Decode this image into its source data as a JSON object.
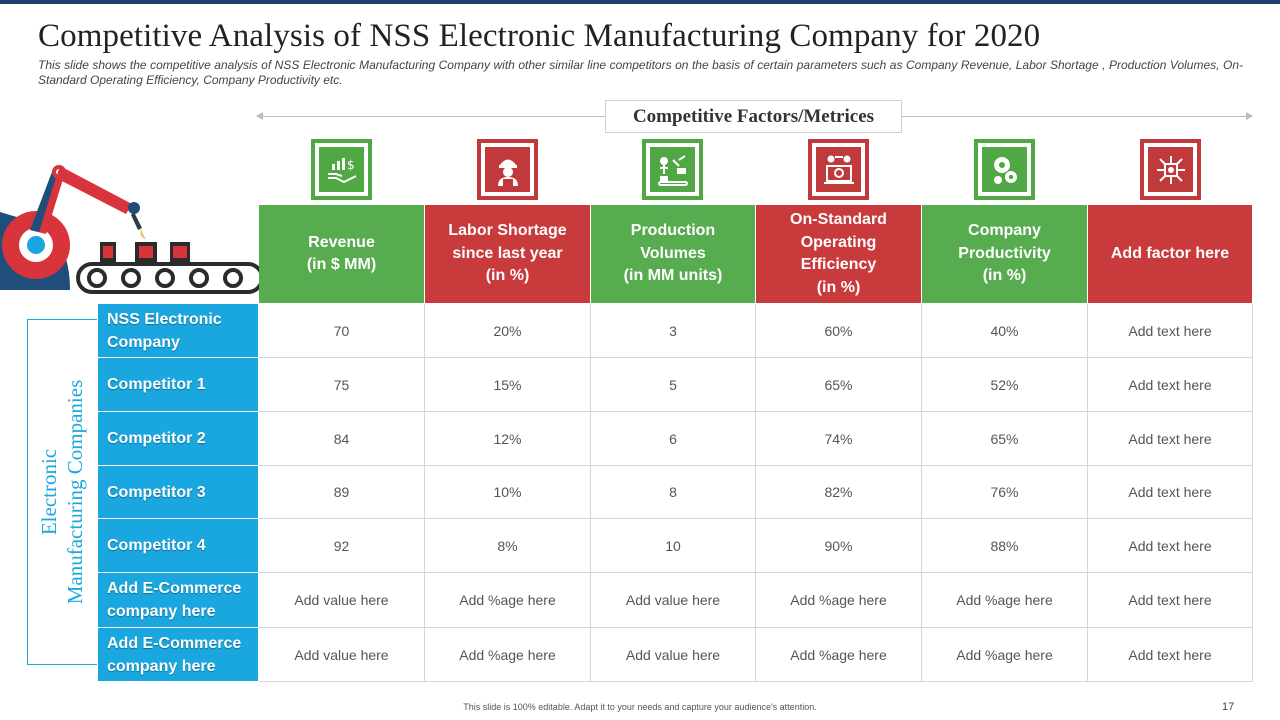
{
  "slide": {
    "title": "Competitive Analysis of NSS Electronic Manufacturing Company for 2020",
    "subtitle": "This slide shows the competitive analysis of NSS Electronic Manufacturing  Company with other similar line competitors on the basis of certain parameters such as Company Revenue,  Labor Shortage , Production Volumes, On-Standard Operating Efficiency, Company Productivity etc.",
    "factors_label": "Competitive Factors/Metrices",
    "side_label_line1": "Electronic",
    "side_label_line2": "Manufacturing Companies",
    "footer": "This slide is 100% editable. Adapt it to your needs and capture your audience's attention.",
    "page_number": "17"
  },
  "colors": {
    "green": "#57ac4f",
    "red": "#c93a3d",
    "blue": "#1aa7df",
    "navy": "#1f3f6e"
  },
  "columns": [
    {
      "label": "Revenue\n(in $ MM)",
      "color": "green",
      "icon": "money-hand-icon"
    },
    {
      "label": "Labor Shortage\nsince last year\n(in %)",
      "color": "red",
      "icon": "worker-icon"
    },
    {
      "label": "Production\nVolumes\n(in MM units)",
      "color": "green",
      "icon": "production-line-icon"
    },
    {
      "label": "On-Standard\nOperating\nEfficiency\n(in %)",
      "color": "red",
      "icon": "laptop-gears-icon"
    },
    {
      "label": "Company\nProductivity\n(in %)",
      "color": "green",
      "icon": "gears-head-icon"
    },
    {
      "label": "Add factor here",
      "color": "red",
      "icon": "circuit-chip-icon"
    }
  ],
  "rows": [
    {
      "label": "NSS Electronic\nCompany",
      "cells": [
        "70",
        "20%",
        "3",
        "60%",
        "40%",
        "Add text here"
      ]
    },
    {
      "label": "Competitor 1",
      "cells": [
        "75",
        "15%",
        "5",
        "65%",
        "52%",
        "Add text here"
      ]
    },
    {
      "label": "Competitor 2",
      "cells": [
        "84",
        "12%",
        "6",
        "74%",
        "65%",
        "Add text here"
      ]
    },
    {
      "label": "Competitor 3",
      "cells": [
        "89",
        "10%",
        "8",
        "82%",
        "76%",
        "Add text here"
      ]
    },
    {
      "label": "Competitor 4",
      "cells": [
        "92",
        "8%",
        "10",
        "90%",
        "88%",
        "Add text here"
      ]
    },
    {
      "label": "Add E-Commerce\ncompany here",
      "cells": [
        "Add value here",
        "Add %age here",
        "Add value here",
        "Add %age here",
        "Add %age here",
        "Add text here"
      ]
    },
    {
      "label": "Add E-Commerce\ncompany here",
      "cells": [
        "Add value here",
        "Add %age here",
        "Add value here",
        "Add %age here",
        "Add %age here",
        "Add text here"
      ]
    }
  ]
}
